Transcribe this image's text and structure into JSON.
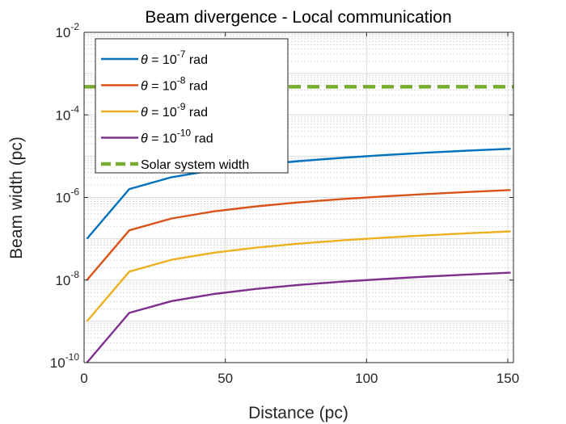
{
  "chart_data": {
    "type": "line",
    "title": "Beam divergence - Local communication",
    "xlabel": "Distance (pc)",
    "ylabel": "Beam width (pc)",
    "xlim": [
      0,
      152
    ],
    "ylim": [
      1e-10,
      0.01
    ],
    "yscale": "log",
    "grid": true,
    "x_ticks": [
      0,
      50,
      100,
      150
    ],
    "y_ticks": [
      {
        "value": 1e-10,
        "base": "10",
        "exp": "-10"
      },
      {
        "value": 1e-08,
        "base": "10",
        "exp": "-8"
      },
      {
        "value": 1e-06,
        "base": "10",
        "exp": "-6"
      },
      {
        "value": 0.0001,
        "base": "10",
        "exp": "-4"
      },
      {
        "value": 0.01,
        "base": "10",
        "exp": "-2"
      }
    ],
    "x": [
      1,
      16,
      31,
      46,
      61,
      76,
      91,
      106,
      121,
      136,
      151
    ],
    "series": [
      {
        "name": "θ = 10^-7 rad",
        "label_prefix": "θ",
        "label_mid": " = 10",
        "label_exp": "-7",
        "label_suffix": " rad",
        "color": "#0072BD",
        "dash": false,
        "divergence": 1e-07
      },
      {
        "name": "θ = 10^-8 rad",
        "label_prefix": "θ",
        "label_mid": " = 10",
        "label_exp": "-8",
        "label_suffix": " rad",
        "color": "#D95319",
        "dash": false,
        "divergence": 1e-08
      },
      {
        "name": "θ = 10^-9 rad",
        "label_prefix": "θ",
        "label_mid": " = 10",
        "label_exp": "-9",
        "label_suffix": " rad",
        "color": "#EDB120",
        "dash": false,
        "divergence": 1e-09
      },
      {
        "name": "θ = 10^-10 rad",
        "label_prefix": "θ",
        "label_mid": " = 10",
        "label_exp": "-10",
        "label_suffix": " rad",
        "color": "#7E2F8E",
        "dash": false,
        "divergence": 1e-10
      },
      {
        "name": "Solar system width",
        "label_text": "Solar system width",
        "color": "#77AC30",
        "dash": true,
        "constant": 0.00048
      }
    ],
    "legend": "top-left"
  }
}
